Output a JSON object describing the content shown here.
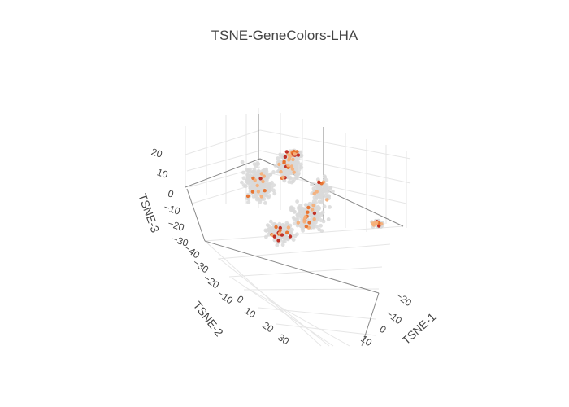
{
  "chart_data": {
    "type": "scatter3d",
    "title": "TSNE-GeneColors-LHA",
    "axes": {
      "x": {
        "title": "TSNE-1",
        "ticks": [
          "−20",
          "−10",
          "0",
          "10"
        ]
      },
      "y": {
        "title": "TSNE-2",
        "ticks": [
          "−40",
          "−30",
          "−20",
          "−10",
          "0",
          "10",
          "20",
          "30"
        ]
      },
      "z": {
        "title": "TSNE-3",
        "ticks": [
          "−30",
          "−20",
          "−10",
          "0",
          "10",
          "20"
        ]
      }
    },
    "grid": true,
    "colors": {
      "base_points": "#d9d9d9",
      "highlight_light": "#f6b07a",
      "highlight_mid": "#e8702a",
      "highlight_dark": "#c0281c",
      "grid": "#e6e6e6",
      "axis_line": "#555555"
    }
  }
}
